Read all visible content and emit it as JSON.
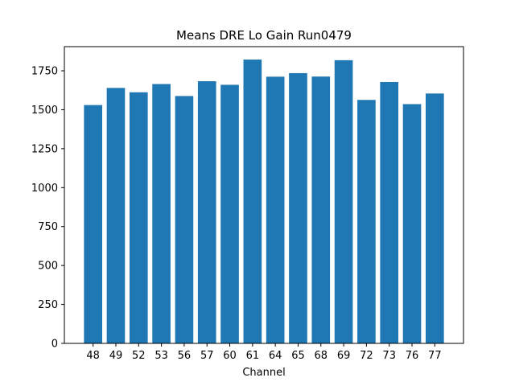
{
  "chart_data": {
    "type": "bar",
    "title": "Means DRE Lo Gain Run0479",
    "xlabel": "Channel",
    "ylabel": "",
    "categories": [
      "48",
      "49",
      "52",
      "53",
      "56",
      "57",
      "60",
      "61",
      "64",
      "65",
      "68",
      "69",
      "72",
      "73",
      "76",
      "77"
    ],
    "values": [
      1530,
      1640,
      1612,
      1665,
      1588,
      1683,
      1660,
      1822,
      1712,
      1735,
      1713,
      1818,
      1563,
      1678,
      1536,
      1604
    ],
    "ylim": [
      0,
      1905
    ],
    "yticks": [
      0,
      250,
      500,
      750,
      1000,
      1250,
      1500,
      1750
    ],
    "bar_color": "#1f77b4",
    "grid": false,
    "legend": "none"
  }
}
